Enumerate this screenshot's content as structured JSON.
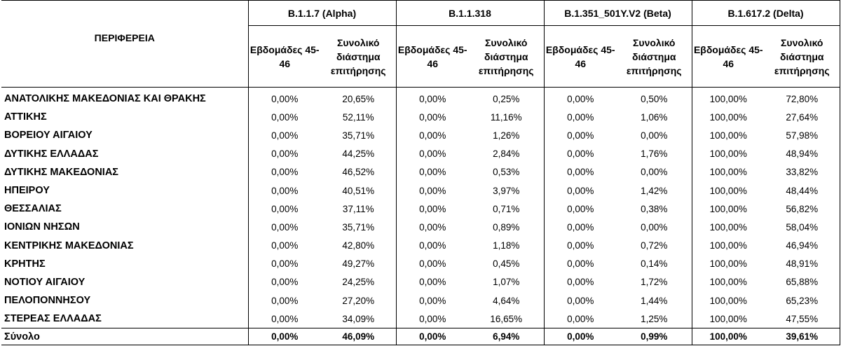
{
  "table": {
    "region_header": "ΠΕΡΙΦΕΡΕΙΑ",
    "variants": [
      {
        "name": "B.1.1.7 (Alpha)"
      },
      {
        "name": "B.1.1.318"
      },
      {
        "name": "B.1.351_501Y.V2 (Beta)"
      },
      {
        "name": "B.1.617.2 (Delta)"
      }
    ],
    "subheaders": {
      "weeks": "Εβδομάδες 45-46",
      "total_period": "Συνολικό διάστημα επιτήρησης"
    },
    "rows": [
      {
        "region": "ΑΝΑΤΟΛΙΚΗΣ ΜΑΚΕΔΟΝΙΑΣ ΚΑΙ ΘΡΑΚΗΣ",
        "values": [
          "0,00%",
          "20,65%",
          "0,00%",
          "0,25%",
          "0,00%",
          "0,50%",
          "100,00%",
          "72,80%"
        ]
      },
      {
        "region": "ΑΤΤΙΚΗΣ",
        "values": [
          "0,00%",
          "52,11%",
          "0,00%",
          "11,16%",
          "0,00%",
          "1,06%",
          "100,00%",
          "27,64%"
        ]
      },
      {
        "region": "ΒΟΡΕΙΟΥ ΑΙΓΑΙΟΥ",
        "values": [
          "0,00%",
          "35,71%",
          "0,00%",
          "1,26%",
          "0,00%",
          "0,00%",
          "100,00%",
          "57,98%"
        ]
      },
      {
        "region": "ΔΥΤΙΚΗΣ ΕΛΛΑΔΑΣ",
        "values": [
          "0,00%",
          "44,25%",
          "0,00%",
          "2,84%",
          "0,00%",
          "1,76%",
          "100,00%",
          "48,94%"
        ]
      },
      {
        "region": "ΔΥΤΙΚΗΣ ΜΑΚΕΔΟΝΙΑΣ",
        "values": [
          "0,00%",
          "46,52%",
          "0,00%",
          "0,53%",
          "0,00%",
          "0,00%",
          "100,00%",
          "33,82%"
        ]
      },
      {
        "region": "ΗΠΕΙΡΟΥ",
        "values": [
          "0,00%",
          "40,51%",
          "0,00%",
          "3,97%",
          "0,00%",
          "1,42%",
          "100,00%",
          "48,44%"
        ]
      },
      {
        "region": "ΘΕΣΣΑΛΙΑΣ",
        "values": [
          "0,00%",
          "37,11%",
          "0,00%",
          "0,71%",
          "0,00%",
          "0,38%",
          "100,00%",
          "56,82%"
        ]
      },
      {
        "region": "ΙΟΝΙΩΝ ΝΗΣΩΝ",
        "values": [
          "0,00%",
          "35,71%",
          "0,00%",
          "0,89%",
          "0,00%",
          "0,00%",
          "100,00%",
          "58,04%"
        ]
      },
      {
        "region": "ΚΕΝΤΡΙΚΗΣ ΜΑΚΕΔΟΝΙΑΣ",
        "values": [
          "0,00%",
          "42,80%",
          "0,00%",
          "1,18%",
          "0,00%",
          "0,72%",
          "100,00%",
          "46,94%"
        ]
      },
      {
        "region": "ΚΡΗΤΗΣ",
        "values": [
          "0,00%",
          "49,27%",
          "0,00%",
          "0,45%",
          "0,00%",
          "0,14%",
          "100,00%",
          "48,91%"
        ]
      },
      {
        "region": "ΝΟΤΙΟΥ ΑΙΓΑΙΟΥ",
        "values": [
          "0,00%",
          "24,25%",
          "0,00%",
          "1,07%",
          "0,00%",
          "1,72%",
          "100,00%",
          "65,88%"
        ]
      },
      {
        "region": "ΠΕΛΟΠΟΝΝΗΣΟΥ",
        "values": [
          "0,00%",
          "27,20%",
          "0,00%",
          "4,64%",
          "0,00%",
          "1,44%",
          "100,00%",
          "65,23%"
        ]
      },
      {
        "region": "ΣΤΕΡΕΑΣ ΕΛΛΑΔΑΣ",
        "values": [
          "0,00%",
          "34,09%",
          "0,00%",
          "16,65%",
          "0,00%",
          "1,25%",
          "100,00%",
          "47,55%"
        ]
      }
    ],
    "total": {
      "region": "Σύνολο",
      "values": [
        "0,00%",
        "46,09%",
        "0,00%",
        "6,94%",
        "0,00%",
        "0,99%",
        "100,00%",
        "39,61%"
      ]
    }
  }
}
